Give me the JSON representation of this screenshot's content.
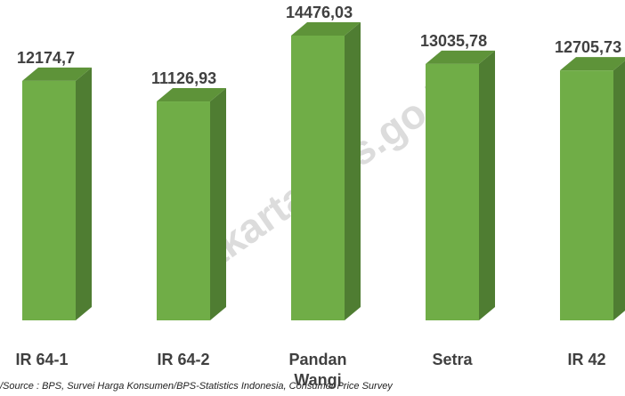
{
  "chart_data": {
    "type": "bar3d",
    "categories": [
      "IR 64-1",
      "IR 64-2",
      "Pandan Wangi",
      "Setra",
      "IR 42"
    ],
    "values": [
      12174.7,
      11126.93,
      14476.03,
      13035.78,
      12705.73
    ],
    "value_labels": [
      "12174,7",
      "11126,93",
      "14476,03",
      "13035,78",
      "12705,73"
    ],
    "color": "#70ad47",
    "source": "/Source : BPS, Survei Harga Konsumen/BPS-Statistics Indonesia, Consumer Price Survey",
    "watermark": "://jakarta.bps.go.id"
  }
}
